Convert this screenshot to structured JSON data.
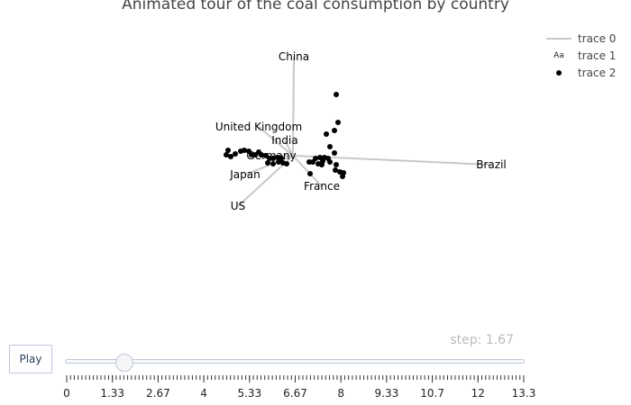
{
  "chart_data": {
    "type": "scatter",
    "title": "Animated tour of the coal consumption by country",
    "legend": {
      "placement": "top-right",
      "entries": [
        "trace 0",
        "trace 1",
        "trace 2"
      ],
      "icons": [
        "line",
        "text-aa",
        "marker"
      ]
    },
    "axes": [
      {
        "label": "China",
        "end": [
          326,
          63
        ]
      },
      {
        "label": "United Kingdom",
        "end": [
          287,
          141
        ]
      },
      {
        "label": "India",
        "end": [
          316,
          156
        ]
      },
      {
        "label": "Germany",
        "end": [
          301,
          173
        ]
      },
      {
        "label": "Brazil",
        "end": [
          545,
          183
        ]
      },
      {
        "label": "Japan",
        "end": [
          272,
          194
        ]
      },
      {
        "label": "France",
        "end": [
          357,
          207
        ]
      },
      {
        "label": "US",
        "end": [
          264,
          229
        ]
      }
    ],
    "points": [
      [
        373,
        105
      ],
      [
        375,
        136
      ],
      [
        371,
        145
      ],
      [
        362,
        149
      ],
      [
        366,
        163
      ],
      [
        371,
        170
      ],
      [
        350,
        176
      ],
      [
        355,
        175
      ],
      [
        360,
        175
      ],
      [
        364,
        176
      ],
      [
        358,
        179
      ],
      [
        343,
        180
      ],
      [
        347,
        180
      ],
      [
        353,
        182
      ],
      [
        357,
        183
      ],
      [
        373,
        183
      ],
      [
        366,
        180
      ],
      [
        372,
        189
      ],
      [
        377,
        191
      ],
      [
        381,
        192
      ],
      [
        380,
        196
      ],
      [
        344,
        193
      ],
      [
        253,
        167
      ],
      [
        251,
        172
      ],
      [
        256,
        174
      ],
      [
        261,
        171
      ],
      [
        267,
        168
      ],
      [
        271,
        167
      ],
      [
        276,
        168
      ],
      [
        279,
        172
      ],
      [
        283,
        172
      ],
      [
        287,
        169
      ],
      [
        290,
        172
      ],
      [
        295,
        173
      ],
      [
        299,
        176
      ],
      [
        303,
        176
      ],
      [
        308,
        175
      ],
      [
        312,
        176
      ],
      [
        309,
        180
      ],
      [
        314,
        181
      ],
      [
        318,
        182
      ],
      [
        303,
        182
      ],
      [
        297,
        181
      ]
    ],
    "slider": {
      "step_label": "step: 1.67",
      "current": 1.67,
      "min": 0,
      "max": 13.3,
      "tick_labels": [
        "0",
        "1.33",
        "2.67",
        "4",
        "5.33",
        "6.67",
        "8",
        "9.33",
        "10.7",
        "12",
        "13.3"
      ]
    }
  },
  "controls": {
    "play_label": "Play"
  },
  "colors": {
    "axis_line": "#c8c8c8",
    "marker": "#000000",
    "slider_border": "#bec8d9",
    "step_text": "#bbbbbb"
  }
}
